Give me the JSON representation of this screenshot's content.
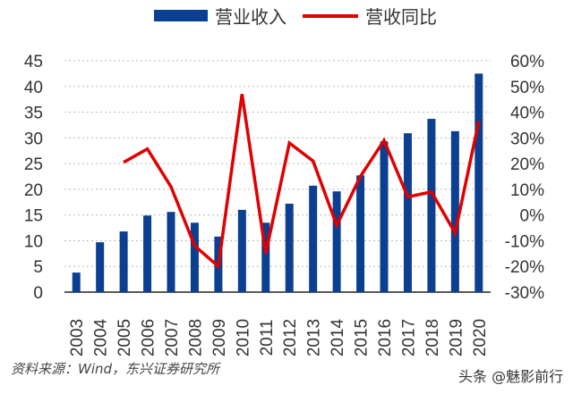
{
  "chart_data": {
    "type": "bar+line",
    "categories": [
      "2003",
      "2004",
      "2005",
      "2006",
      "2007",
      "2008",
      "2009",
      "2010",
      "2011",
      "2012",
      "2013",
      "2014",
      "2015",
      "2016",
      "2017",
      "2018",
      "2019",
      "2020"
    ],
    "series": [
      {
        "name": "营业收入",
        "type": "bar",
        "axis": "left",
        "color": "#0b3f91",
        "values": [
          3.8,
          9.7,
          11.8,
          14.9,
          15.6,
          13.5,
          10.8,
          16.0,
          13.5,
          17.2,
          20.7,
          19.6,
          22.7,
          29.3,
          30.9,
          33.7,
          31.3,
          42.5
        ]
      },
      {
        "name": "营收同比",
        "type": "line",
        "axis": "right",
        "color": "#e00000",
        "values": [
          null,
          null,
          20.5,
          25.7,
          11,
          -12,
          -20,
          47,
          -15,
          28,
          21,
          -4,
          15,
          29,
          7,
          9,
          -7,
          36.5
        ]
      }
    ],
    "left_axis": {
      "min": 0,
      "max": 45,
      "ticks": [
        "0",
        "5",
        "10",
        "15",
        "20",
        "25",
        "30",
        "35",
        "40",
        "45"
      ]
    },
    "right_axis": {
      "min": -30,
      "max": 60,
      "unit": "%",
      "ticks": [
        "-30%",
        "-20%",
        "-10%",
        "0%",
        "10%",
        "20%",
        "30%",
        "40%",
        "50%",
        "60%"
      ]
    },
    "grid": true,
    "legend_position": "top"
  },
  "footer": {
    "source": "资料来源：Wind，东兴证券研究所",
    "watermark": "头条 @魅影前行"
  }
}
